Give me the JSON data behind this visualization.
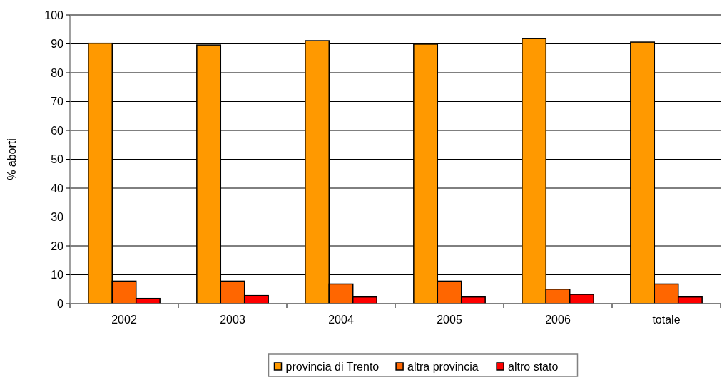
{
  "chart_data": {
    "type": "bar",
    "categories": [
      "2002",
      "2003",
      "2004",
      "2005",
      "2006",
      "totale"
    ],
    "series": [
      {
        "name": "provincia di Trento",
        "color": "#ff9900",
        "values": [
          90.2,
          89.6,
          91.1,
          89.9,
          91.8,
          90.6
        ]
      },
      {
        "name": "altra provincia",
        "color": "#ff6600",
        "values": [
          7.8,
          7.8,
          6.8,
          7.8,
          5.0,
          6.8
        ]
      },
      {
        "name": "altro stato",
        "color": "#ff0000",
        "values": [
          1.8,
          2.8,
          2.3,
          2.3,
          3.2,
          2.3
        ]
      }
    ],
    "ylabel": "% aborti",
    "ylim": [
      0,
      100
    ],
    "yticks": [
      0,
      10,
      20,
      30,
      40,
      50,
      60,
      70,
      80,
      90,
      100
    ],
    "grid": "y",
    "legend": "bottom"
  }
}
